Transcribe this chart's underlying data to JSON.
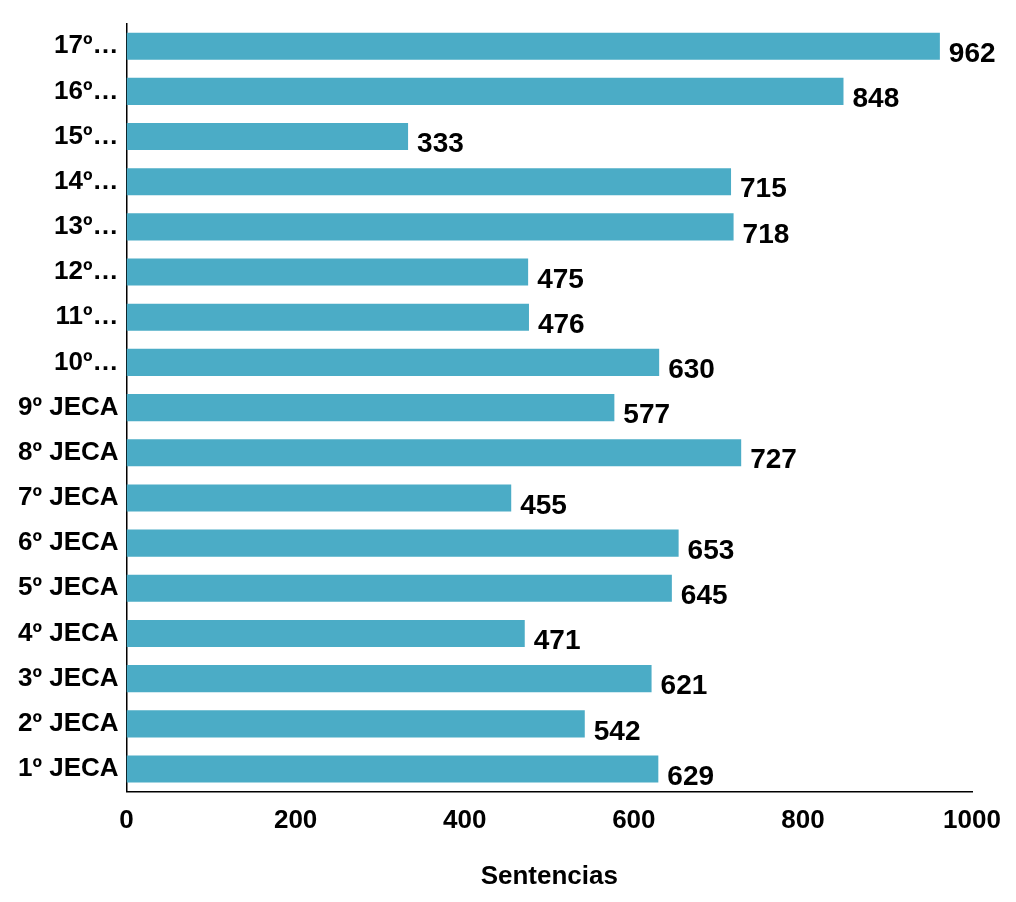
{
  "chart_data": {
    "type": "bar",
    "orientation": "horizontal",
    "xlabel": "Sentencias",
    "categories": [
      "17º…",
      "16º…",
      "15º…",
      "14º…",
      "13º…",
      "12º…",
      "11º…",
      "10º…",
      "9º JECA",
      "8º JECA",
      "7º JECA",
      "6º JECA",
      "5º JECA",
      "4º JECA",
      "3º JECA",
      "2º JECA",
      "1º JECA"
    ],
    "values": [
      962,
      848,
      333,
      715,
      718,
      475,
      476,
      630,
      577,
      727,
      455,
      653,
      645,
      471,
      621,
      542,
      629
    ],
    "color": "#4bacc6",
    "xlim": [
      0,
      1000
    ],
    "xticks": [
      0,
      200,
      400,
      600,
      800,
      1000
    ],
    "data_labels": true,
    "grid": false,
    "legend": false
  }
}
